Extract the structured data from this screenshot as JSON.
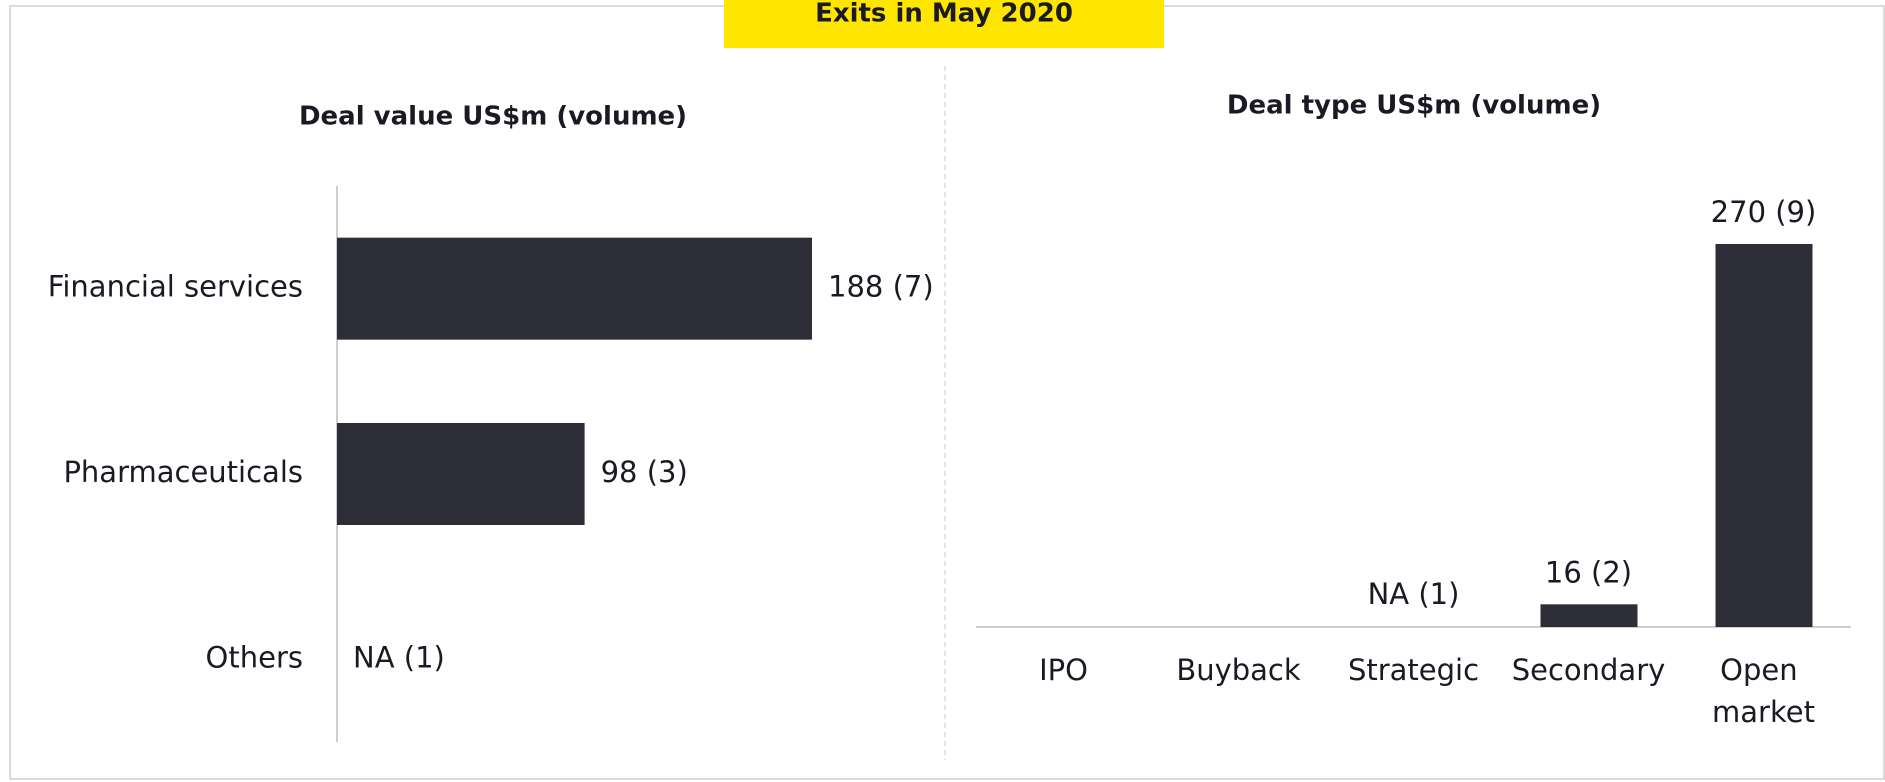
{
  "title": "Exits in  May 2020",
  "chart_data": [
    {
      "type": "barh",
      "title": "Deal value US$m (volume)",
      "color": "#2e2e38",
      "categories": [
        "Financial services",
        "Pharmaceuticals",
        "Others"
      ],
      "values": [
        188,
        98,
        null
      ],
      "value_labels": [
        "188 (7)",
        "98 (3)",
        "NA (1)"
      ]
    },
    {
      "type": "bar",
      "title": "Deal type US$m (volume)",
      "color": "#2e2e38",
      "categories": [
        "IPO",
        "Buyback",
        "Strategic",
        "Secondary",
        "Open market"
      ],
      "values": [
        null,
        null,
        null,
        16,
        270
      ],
      "value_labels": [
        null,
        null,
        "NA (1)",
        "16 (2)",
        "270 (9)"
      ]
    }
  ]
}
